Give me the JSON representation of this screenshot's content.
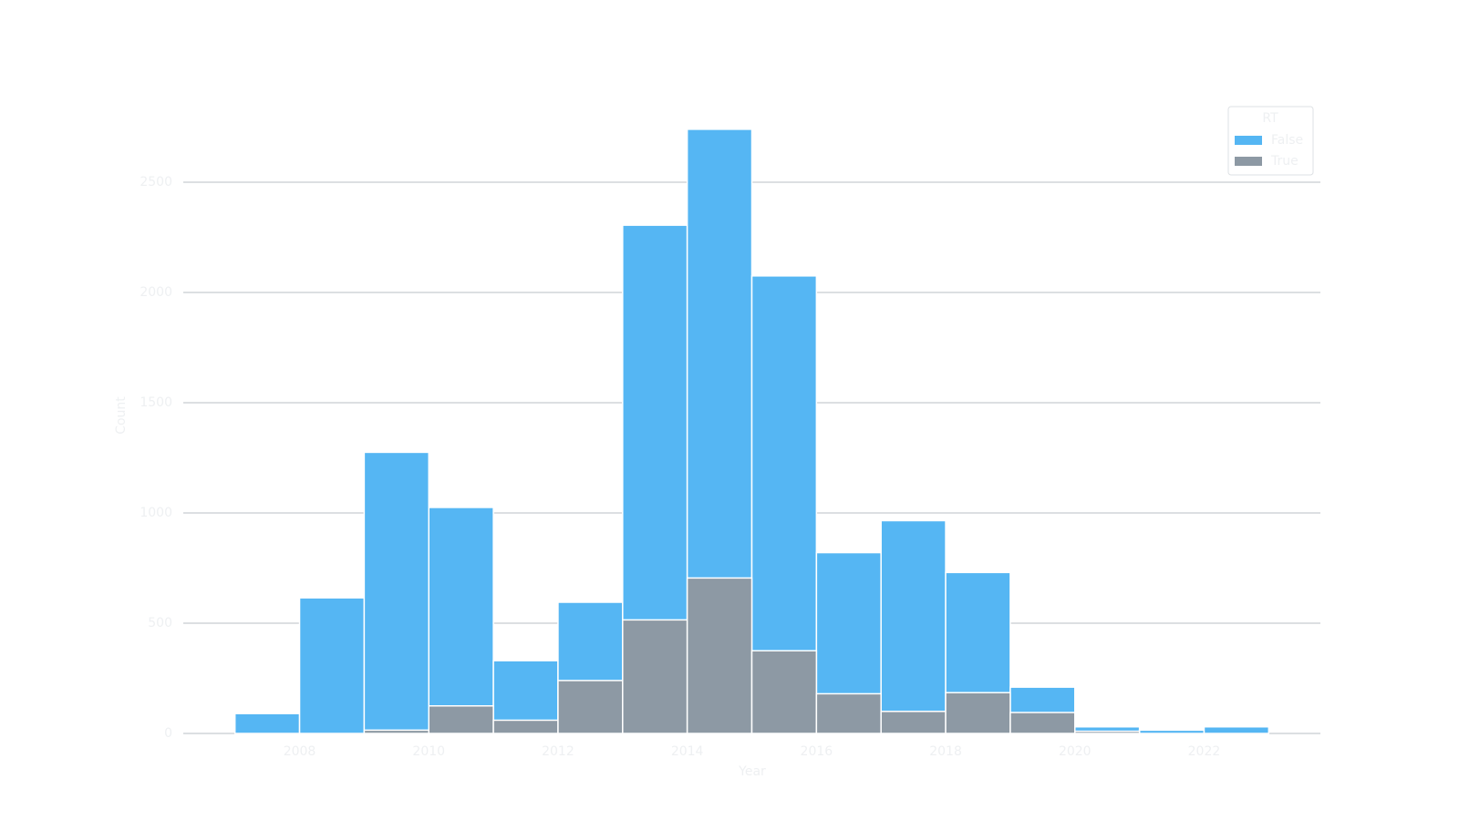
{
  "chart_data": {
    "type": "histogram",
    "x_label": "Year",
    "y_label": "Count",
    "legend_title": "RT",
    "legend_position": "upper right",
    "bins": [
      2007,
      2008,
      2009,
      2010,
      2011,
      2012,
      2013,
      2014,
      2015,
      2016,
      2017,
      2018,
      2019,
      2020,
      2021,
      2022,
      2023
    ],
    "series": [
      {
        "name": "False",
        "color": "#55b6f3",
        "values": [
          90,
          615,
          1275,
          1025,
          330,
          595,
          2305,
          2740,
          2075,
          820,
          965,
          730,
          210,
          30,
          15,
          30
        ]
      },
      {
        "name": "True",
        "color": "#8d99a4",
        "values": [
          0,
          0,
          15,
          125,
          60,
          240,
          515,
          705,
          375,
          180,
          100,
          185,
          95,
          10,
          0,
          0
        ]
      }
    ],
    "xlim": [
      2006.2,
      2023.8
    ],
    "ylim": [
      0,
      2880
    ],
    "xticks": [
      2008,
      2010,
      2012,
      2014,
      2016,
      2018,
      2020,
      2022
    ],
    "yticks": [
      0,
      500,
      1000,
      1500,
      2000,
      2500
    ],
    "grid": true
  }
}
